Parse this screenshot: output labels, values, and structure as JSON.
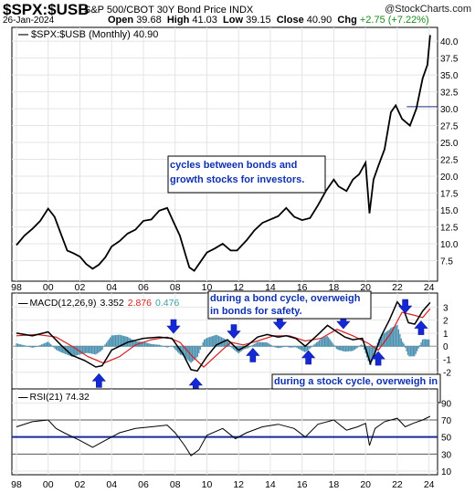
{
  "header": {
    "symbol": "$SPX:$USB",
    "description": "S&P 500/CBOT 30Y Bond Price INDX",
    "date": "26-Jan-2024",
    "watermark": "@StockCharts.com",
    "open_label": "Open",
    "open": "39.68",
    "high_label": "High",
    "high": "41.03",
    "low_label": "Low",
    "low": "39.15",
    "close_label": "Close",
    "close": "40.90",
    "chg_label": "Chg",
    "chg": "+2.75 (+7.22%)"
  },
  "chart_data": [
    {
      "type": "line",
      "legend": "$SPX:$USB (Monthly) 40.90",
      "x": [
        1998,
        1998.5,
        1999,
        1999.5,
        2000,
        2000.4,
        2000.8,
        2001.2,
        2001.6,
        2002,
        2002.4,
        2002.8,
        2003.2,
        2003.6,
        2004,
        2004.5,
        2005,
        2005.5,
        2006,
        2006.5,
        2007,
        2007.5,
        2007.9,
        2008.3,
        2008.7,
        2008.9,
        2009.2,
        2009.5,
        2010,
        2010.5,
        2011,
        2011.5,
        2011.9,
        2012.5,
        2013,
        2013.5,
        2014,
        2014.5,
        2015,
        2015.5,
        2016,
        2016.5,
        2017,
        2017.5,
        2018,
        2018.3,
        2018.8,
        2019.2,
        2019.6,
        2020,
        2020.25,
        2020.5,
        2020.8,
        2021.2,
        2021.6,
        2021.9,
        2022.3,
        2022.8,
        2023.2,
        2023.6,
        2023.9,
        2024.07
      ],
      "y": [
        9.8,
        11.2,
        12.2,
        13.4,
        15.2,
        14.0,
        11.5,
        9.0,
        8.6,
        8.1,
        7.0,
        6.3,
        6.9,
        8.0,
        9.6,
        10.4,
        11.5,
        12.1,
        13.4,
        13.6,
        14.9,
        15.3,
        13.2,
        11.2,
        8.0,
        6.5,
        6.0,
        7.0,
        8.7,
        9.3,
        10.0,
        9.0,
        9.0,
        10.5,
        12.0,
        13.1,
        13.6,
        14.1,
        15.3,
        14.0,
        13.5,
        13.8,
        15.7,
        17.8,
        19.5,
        18.5,
        17.8,
        19.5,
        20.3,
        22.0,
        14.5,
        19.5,
        21.5,
        24.0,
        29.5,
        30.5,
        28.5,
        27.5,
        30.0,
        34.5,
        36.5,
        40.9
      ],
      "ylim": [
        5,
        41.5
      ],
      "yticks": [
        "7.5",
        "10.0",
        "12.5",
        "15.0",
        "17.5",
        "20.0",
        "22.5",
        "25.0",
        "27.5",
        "30.0",
        "32.5",
        "35.0",
        "37.5",
        "40.0"
      ],
      "xticks": [
        "98",
        "00",
        "02",
        "04",
        "06",
        "08",
        "10",
        "12",
        "14",
        "16",
        "18",
        "20",
        "22",
        "24"
      ],
      "reference_line": 30.3,
      "annotation": "cycles between bonds and growth stocks for investors."
    },
    {
      "type": "line",
      "legend_prefix": "MACD(12,26,9)",
      "macd_value": "3.352",
      "signal_value": "2.876",
      "hist_value": "0.476",
      "colors": {
        "macd": "#000000",
        "signal": "#d62020",
        "histogram": "#4a90b0",
        "value_signal": "#d62020",
        "value_hist": "#3aa0a0"
      },
      "ylim": [
        -3,
        3.8
      ],
      "yticks": [
        "-2",
        "-1",
        "0",
        "1",
        "2",
        "3"
      ],
      "macd_x": [
        1998,
        1999,
        2000,
        2000.8,
        2001.5,
        2002.3,
        2003,
        2003.4,
        2004,
        2005,
        2006,
        2007,
        2007.8,
        2008.5,
        2009,
        2009.4,
        2010,
        2010.6,
        2011.3,
        2012,
        2012.6,
        2013.2,
        2013.8,
        2014.5,
        2015,
        2015.6,
        2016.2,
        2017,
        2017.6,
        2018.2,
        2018.7,
        2019.2,
        2019.8,
        2020.3,
        2020.6,
        2021,
        2021.5,
        2022,
        2022.4,
        2022.7,
        2023.1,
        2023.6,
        2024.07
      ],
      "macd_y": [
        1.0,
        0.8,
        1.1,
        0.1,
        -0.7,
        -1.1,
        -1.6,
        -1.5,
        -0.3,
        0.3,
        0.6,
        0.7,
        0.6,
        -0.6,
        -1.8,
        -1.9,
        -0.8,
        0.1,
        0.5,
        -0.3,
        0.1,
        0.7,
        0.9,
        0.7,
        0.8,
        0.6,
        0.0,
        0.9,
        1.6,
        1.1,
        0.7,
        0.5,
        0.6,
        -1.3,
        -0.5,
        0.8,
        2.0,
        3.4,
        2.8,
        1.8,
        1.7,
        2.7,
        3.35
      ],
      "signal_x": [
        1998,
        1999.3,
        2000.5,
        2001.5,
        2002.5,
        2003.5,
        2004.5,
        2005.5,
        2006.5,
        2007.5,
        2008.3,
        2009.1,
        2009.8,
        2010.6,
        2011.5,
        2012.3,
        2013.2,
        2014.2,
        2015.2,
        2016.2,
        2017.2,
        2018.2,
        2019.2,
        2020.2,
        2020.8,
        2021.6,
        2022.3,
        2023,
        2023.6,
        2024.07
      ],
      "signal_y": [
        0.8,
        0.9,
        0.7,
        0.0,
        -0.8,
        -1.3,
        -0.8,
        0.1,
        0.5,
        0.7,
        0.3,
        -0.8,
        -1.6,
        -0.7,
        0.3,
        0.1,
        0.4,
        0.8,
        0.8,
        0.4,
        0.6,
        1.3,
        0.8,
        0.2,
        -0.3,
        1.0,
        2.6,
        2.4,
        2.2,
        2.88
      ],
      "annotation_bond": "during a bond cycle, overweigh in bonds for safety.",
      "annotation_stock": "during a stock cycle, overweigh in stocks for maximum growth.",
      "arrows_down_years": [
        2007.9,
        2011.7,
        2014.6,
        2018.6,
        2022.5
      ],
      "arrows_up_years": [
        2003.2,
        2009.3,
        2012.9,
        2016.4,
        2020.8,
        2023.5
      ]
    },
    {
      "type": "line",
      "legend": "RSI(21) 74.32",
      "ylim": [
        10,
        100
      ],
      "yticks": [
        "90",
        "70",
        "50",
        "30",
        "10"
      ],
      "overbought": 70,
      "oversold": 30,
      "midline": 50,
      "x": [
        1998,
        1999,
        2000,
        2000.5,
        2001,
        2002,
        2002.8,
        2003.5,
        2004.5,
        2005.5,
        2006.5,
        2007.5,
        2008,
        2008.6,
        2009,
        2009.5,
        2010,
        2011,
        2011.8,
        2012.5,
        2013.5,
        2014.5,
        2015.5,
        2016.2,
        2017,
        2018,
        2018.8,
        2019.5,
        2020,
        2020.25,
        2020.6,
        2021.2,
        2022,
        2022.5,
        2023,
        2023.6,
        2024.07
      ],
      "y": [
        62,
        68,
        70,
        60,
        55,
        46,
        38,
        45,
        55,
        60,
        62,
        64,
        55,
        40,
        28,
        35,
        52,
        60,
        48,
        55,
        62,
        65,
        60,
        50,
        65,
        70,
        58,
        62,
        66,
        40,
        60,
        68,
        72,
        62,
        66,
        70,
        74.3
      ]
    }
  ]
}
